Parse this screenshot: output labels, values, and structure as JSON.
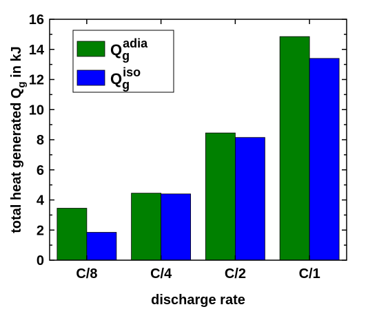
{
  "chart_data": {
    "type": "bar",
    "categories": [
      "C/8",
      "C/4",
      "C/2",
      "C/1"
    ],
    "series": [
      {
        "name": "Q_g^adia",
        "label_main": "Q",
        "label_sub": "g",
        "label_sup": "adia",
        "color": "#008000",
        "values": [
          3.45,
          4.45,
          8.45,
          14.85
        ]
      },
      {
        "name": "Q_g^iso",
        "label_main": "Q",
        "label_sub": "g",
        "label_sup": "iso",
        "color": "#0000ff",
        "values": [
          1.85,
          4.4,
          8.15,
          13.4
        ]
      }
    ],
    "xlabel": "discharge rate",
    "ylabel": {
      "prefix": "total heat generated Q",
      "sub": "g",
      "suffix": " in kJ"
    },
    "ylim": [
      0,
      16
    ],
    "yticks": [
      0,
      2,
      4,
      6,
      8,
      10,
      12,
      14,
      16
    ],
    "grid": false,
    "legend": "top-left"
  }
}
